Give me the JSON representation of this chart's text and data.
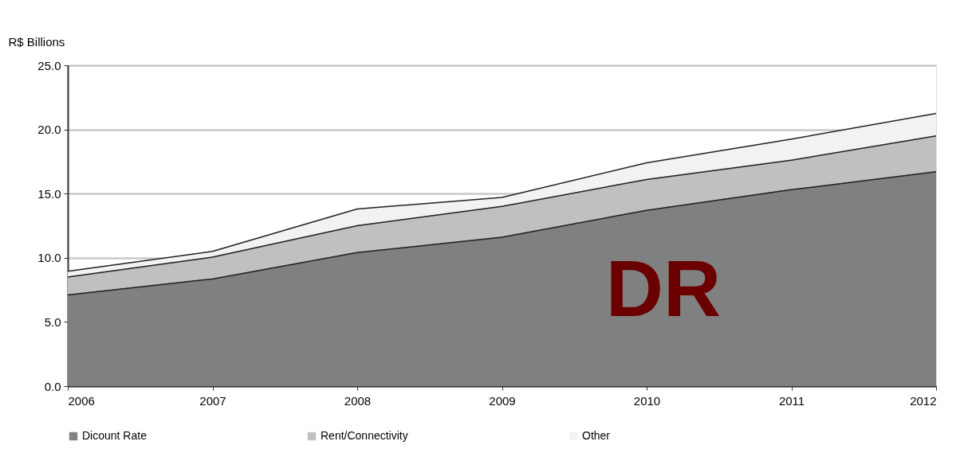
{
  "chart_data": {
    "type": "area",
    "stacked": true,
    "ylabel": "R$ Billions",
    "x": [
      2006,
      2007,
      2008,
      2009,
      2010,
      2011,
      2012
    ],
    "series": [
      {
        "name": "Dicount Rate",
        "color": "#808080",
        "values": [
          7.1,
          8.35,
          10.4,
          11.6,
          13.7,
          15.3,
          16.7
        ]
      },
      {
        "name": "Rent/Connectivity",
        "color": "#c0c0c0",
        "values": [
          1.4,
          1.7,
          2.1,
          2.4,
          2.4,
          2.3,
          2.8
        ]
      },
      {
        "name": "Other",
        "color": "#f2f2f2",
        "values": [
          0.45,
          0.45,
          1.3,
          0.7,
          1.3,
          1.65,
          1.75
        ]
      }
    ],
    "xlim": [
      2006,
      2012
    ],
    "xticks": [
      2006,
      2007,
      2008,
      2009,
      2010,
      2011,
      2012
    ],
    "ylim": [
      0,
      25
    ],
    "yticks": [
      {
        "value": 0,
        "label": "0.0"
      },
      {
        "value": 5,
        "label": "5.0"
      },
      {
        "value": 10,
        "label": "10.0"
      },
      {
        "value": 15,
        "label": "15.0"
      },
      {
        "value": 20,
        "label": "20.0"
      },
      {
        "value": 25,
        "label": "25.0"
      }
    ],
    "grid": "y",
    "legend": "bottom",
    "annotations": [
      "DR"
    ]
  }
}
